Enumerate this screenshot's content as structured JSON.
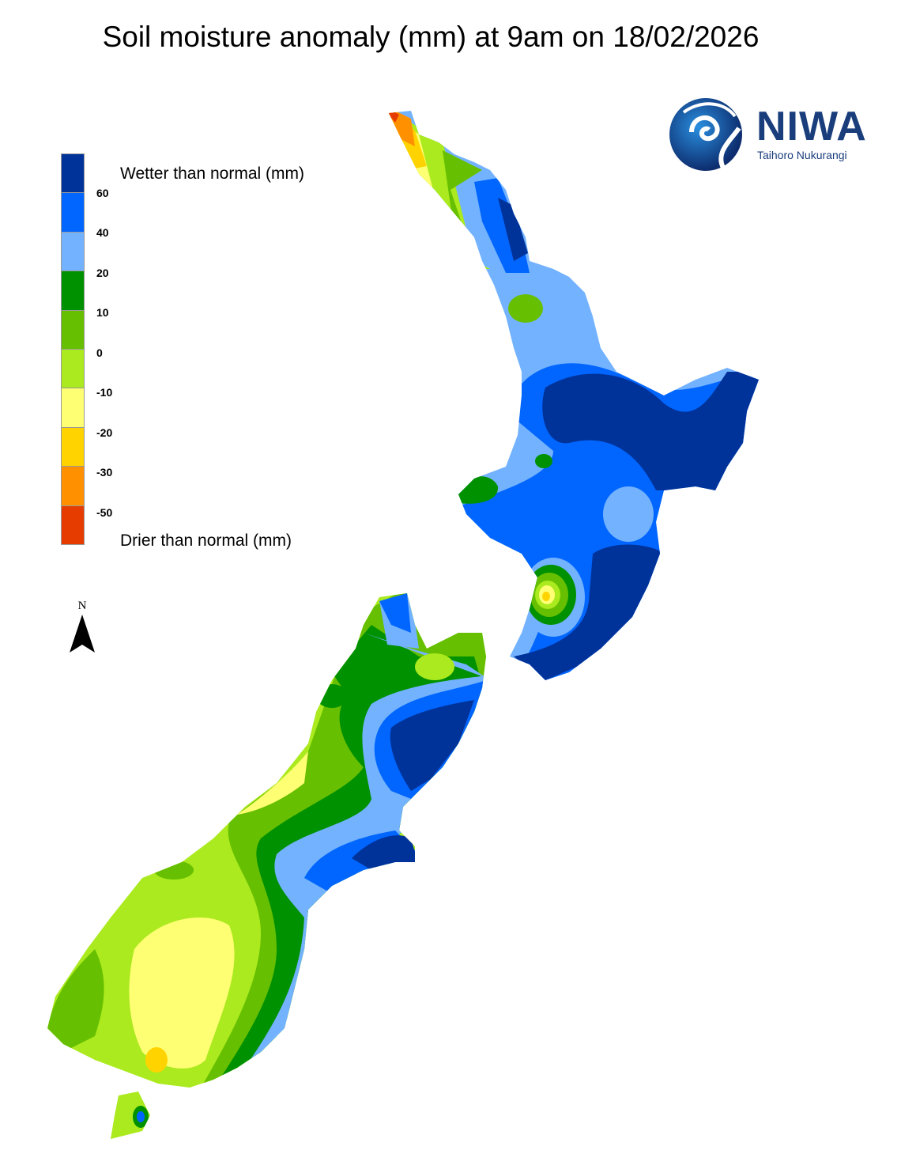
{
  "title": "Soil moisture anomaly (mm) at 9am on 18/02/2026",
  "legend": {
    "top_label": "Wetter than normal (mm)",
    "bottom_label": "Drier than normal (mm)",
    "colors": [
      "#00339a",
      "#0066ff",
      "#73b2ff",
      "#009100",
      "#66bf00",
      "#aaea1e",
      "#ffff73",
      "#ffd300",
      "#ff9100",
      "#e63c00"
    ],
    "ticks": [
      "60",
      "40",
      "20",
      "10",
      "0",
      "-10",
      "-20",
      "-30",
      "-50"
    ]
  },
  "north_arrow": {
    "label": "N"
  },
  "logo": {
    "name": "NIWA",
    "tagline": "Taihoro Nukurangi",
    "color": "#1a3d7c"
  }
}
